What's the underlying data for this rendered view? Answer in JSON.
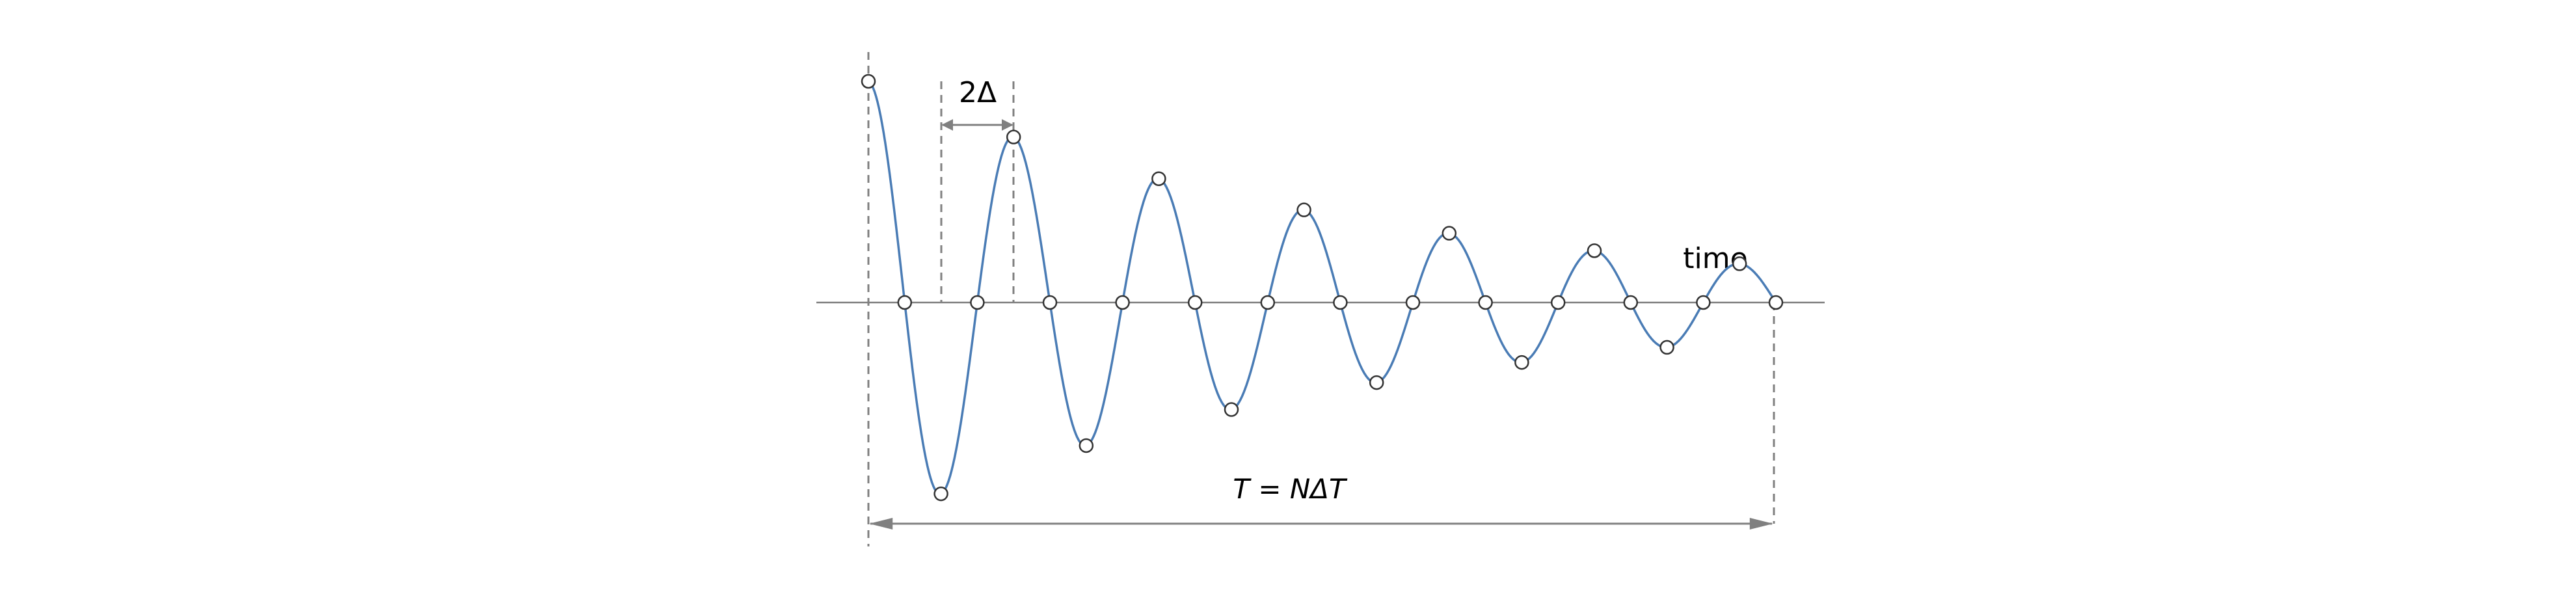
{
  "labels": {
    "spacing": "2Δ",
    "axis": "time",
    "period": "T = NΔT"
  },
  "signal": {
    "samples_per_half_period": 2,
    "sample_count": 26,
    "description_free_params": {
      "initial_amplitude": 1.0,
      "decay_per_sample": 0.93
    }
  },
  "colors": {
    "curve": "#4a7cb5",
    "axis": "#808080",
    "dashed": "#808080",
    "arrow": "#808080",
    "marker_fill": "#ffffff",
    "marker_stroke": "#333333"
  }
}
